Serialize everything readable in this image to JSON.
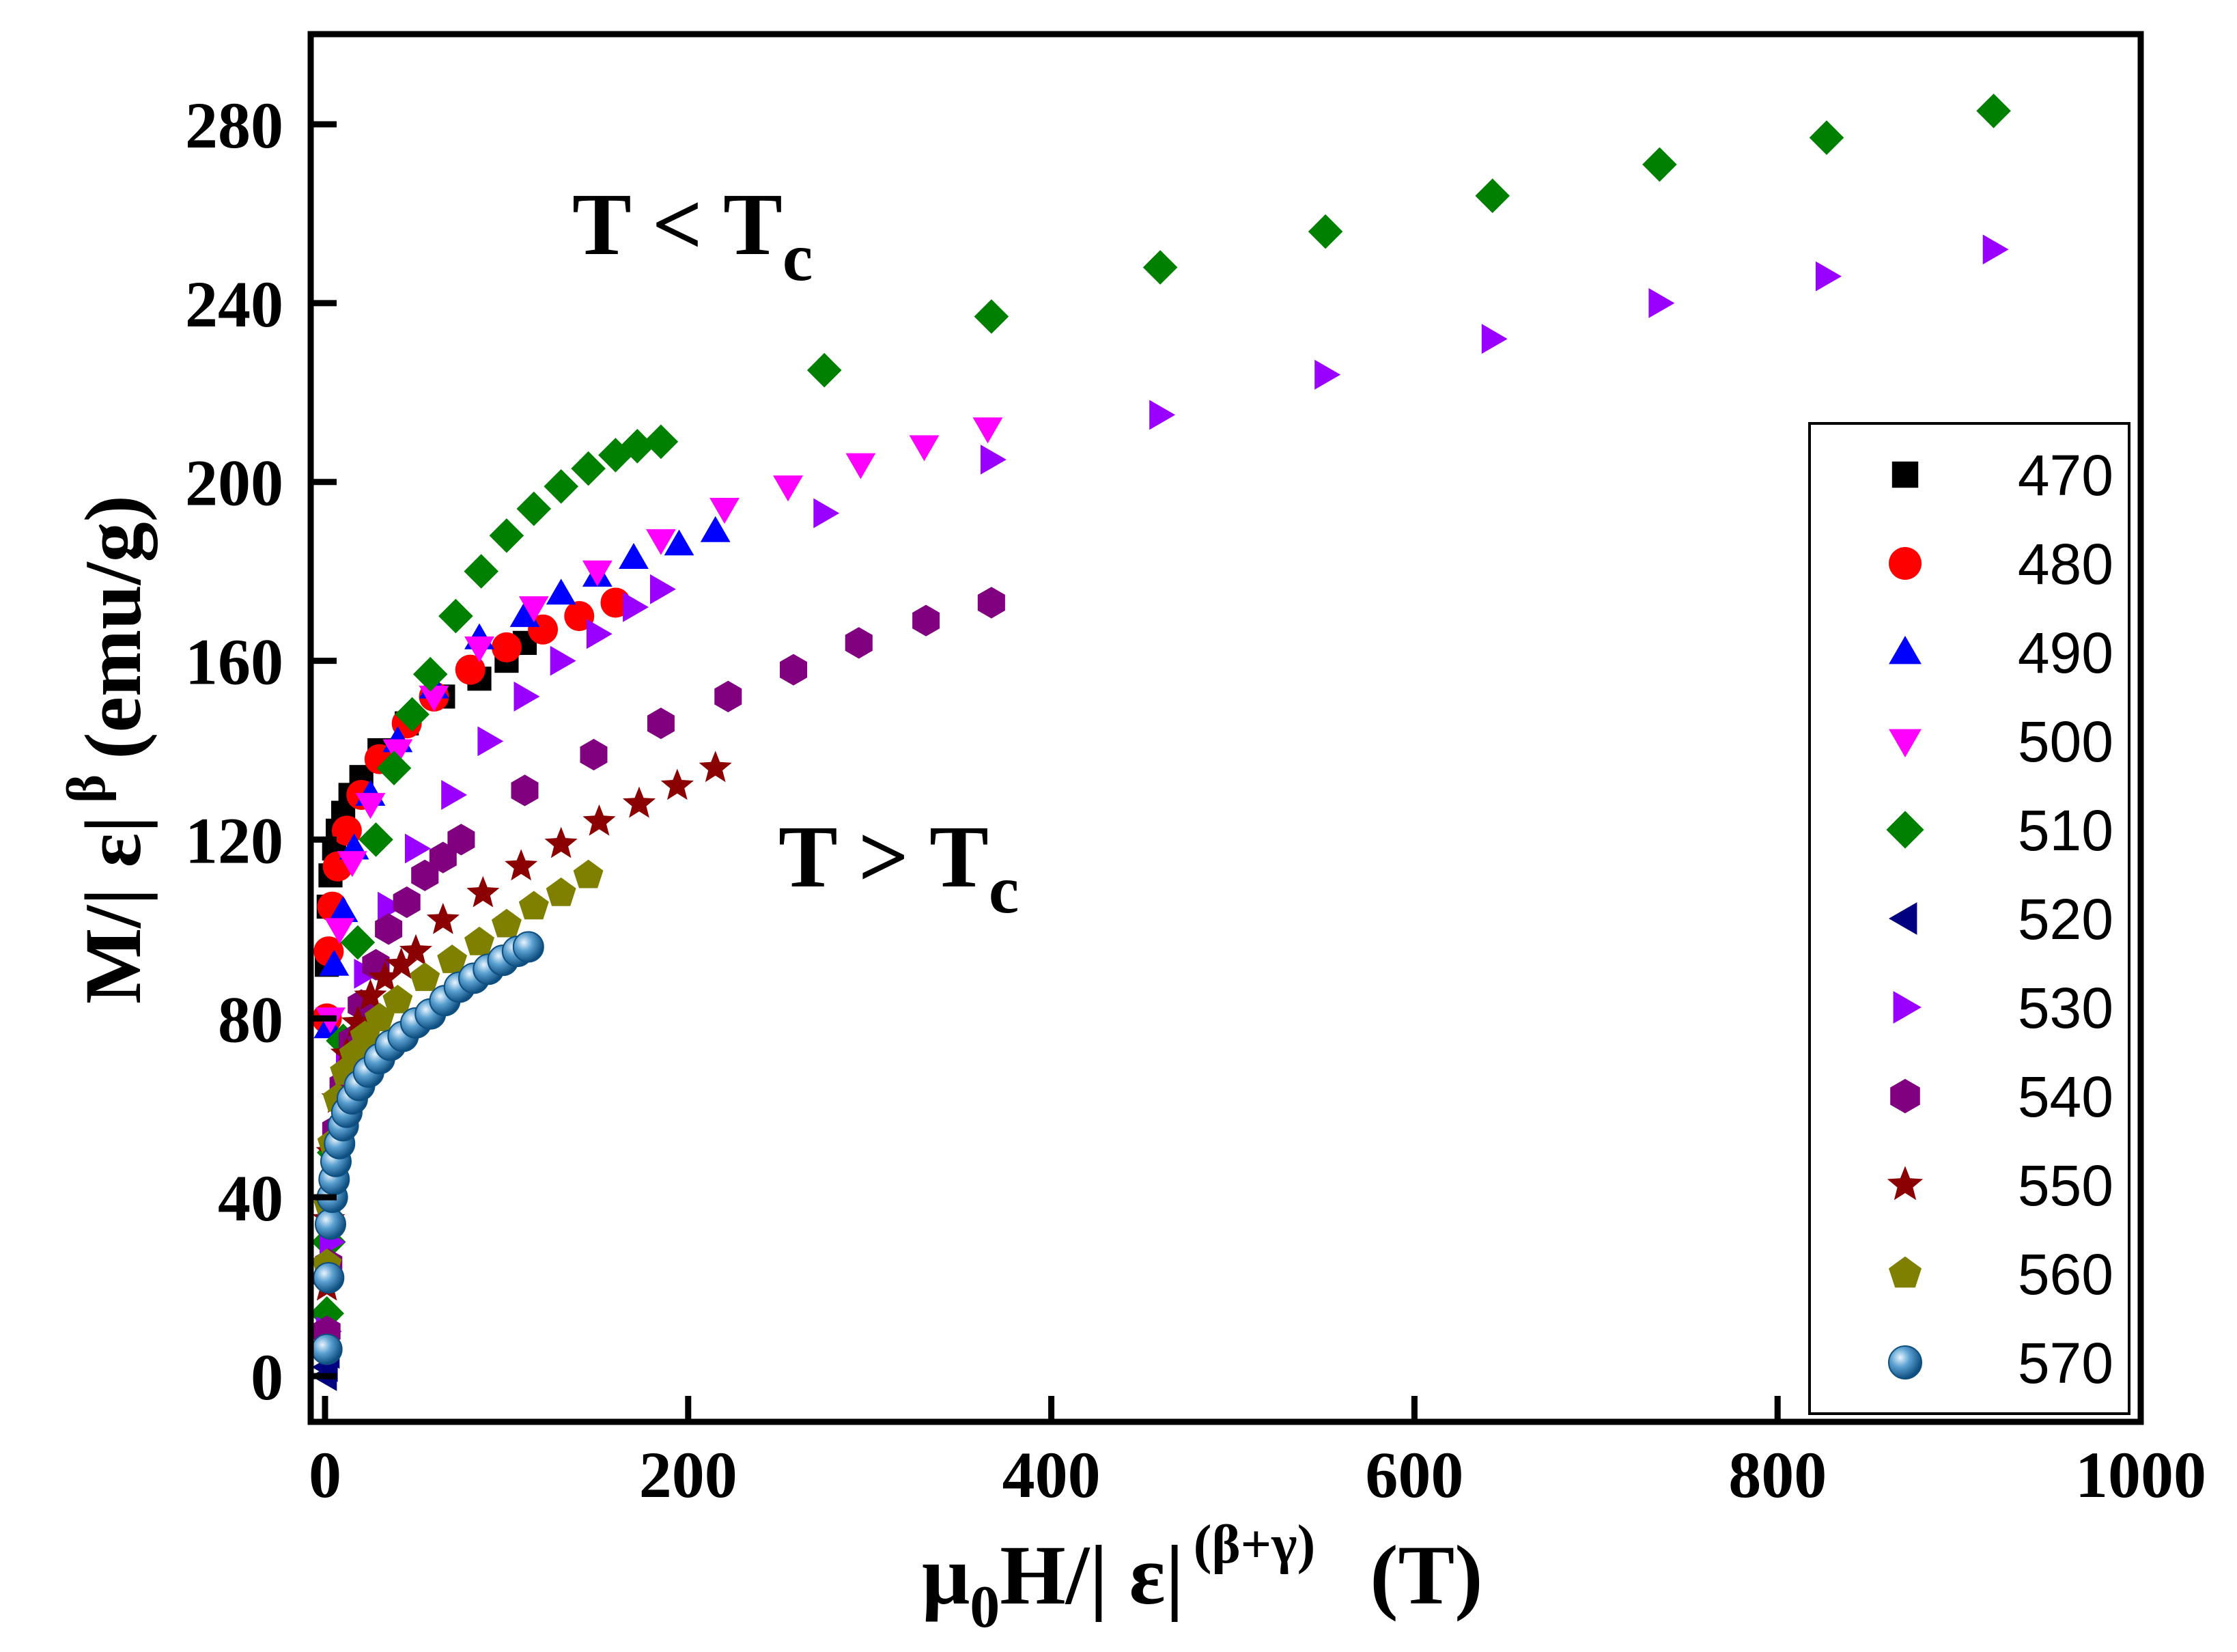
{
  "chart_data": {
    "type": "scatter",
    "xlabel": {
      "main": "μ",
      "sub": "0",
      "mid": "H/| ε|",
      "sup": "(β+γ)",
      "unit": "(T)"
    },
    "ylabel": {
      "main": "M/| ε|",
      "sup": "β",
      "unit": "(emu/g)"
    },
    "xlim": [
      0,
      1000
    ],
    "ylim": [
      -10,
      300
    ],
    "xticks": [
      0,
      200,
      400,
      600,
      800,
      1000
    ],
    "yticks": [
      0,
      40,
      80,
      120,
      160,
      200,
      240,
      280
    ],
    "annotations": [
      {
        "id": "below-tc",
        "base": "T < T",
        "sub": "c"
      },
      {
        "id": "above-tc",
        "base": "T > T",
        "sub": "c"
      }
    ],
    "legend_position": "right",
    "series": [
      {
        "name": "470",
        "marker": "square",
        "color": "#000000",
        "x": [
          1,
          2,
          3,
          5,
          7,
          10,
          14,
          20,
          30,
          45,
          65,
          85,
          100,
          110
        ],
        "y": [
          92,
          105,
          112,
          118,
          122,
          126,
          130,
          134,
          140,
          146,
          152,
          156,
          160,
          164
        ]
      },
      {
        "name": "480",
        "marker": "circle",
        "color": "#ff0000",
        "x": [
          1,
          2,
          4,
          7,
          12,
          20,
          30,
          45,
          60,
          80,
          100,
          120,
          140,
          160
        ],
        "y": [
          80,
          95,
          105,
          114,
          122,
          130,
          138,
          146,
          152,
          158,
          163,
          167,
          170,
          173
        ]
      },
      {
        "name": "490",
        "marker": "triangle-up",
        "color": "#0000ff",
        "x": [
          2,
          5,
          10,
          16,
          25,
          40,
          60,
          85,
          110,
          130,
          150,
          170,
          195,
          215
        ],
        "y": [
          78,
          92,
          104,
          118,
          130,
          142,
          154,
          165,
          170,
          175,
          179,
          183,
          186,
          189
        ]
      },
      {
        "name": "500",
        "marker": "triangle-down",
        "color": "#ff00ff",
        "x": [
          3,
          8,
          15,
          25,
          40,
          60,
          85,
          115,
          150,
          185,
          220,
          255,
          295,
          330,
          365
        ],
        "y": [
          80,
          100,
          115,
          128,
          140,
          152,
          163,
          172,
          180,
          187,
          194,
          199,
          204,
          208,
          212
        ]
      },
      {
        "name": "510",
        "marker": "diamond",
        "color": "#008000",
        "x": [
          1,
          2,
          5,
          10,
          18,
          28,
          38,
          48,
          58,
          72,
          86,
          100,
          115,
          130,
          145,
          160,
          172,
          185,
          275,
          367,
          460,
          551,
          643,
          735,
          827,
          919
        ],
        "y": [
          14,
          30,
          50,
          75,
          97,
          120,
          136,
          148,
          157,
          170,
          180,
          188,
          194,
          199,
          203,
          206,
          208,
          209,
          225,
          237,
          248,
          256,
          264,
          271,
          277,
          283
        ]
      },
      {
        "name": "520",
        "marker": "triangle-left",
        "color": "#000080",
        "x": [
          0.5,
          1,
          2
        ],
        "y": [
          0,
          2,
          5
        ]
      },
      {
        "name": "530",
        "marker": "triangle-right",
        "color": "#9900ff",
        "x": [
          1,
          3,
          6,
          12,
          22,
          35,
          50,
          70,
          90,
          110,
          130,
          150,
          170,
          185,
          275,
          367,
          460,
          551,
          643,
          735,
          827,
          919
        ],
        "y": [
          10,
          30,
          50,
          70,
          90,
          105,
          118,
          130,
          142,
          152,
          160,
          166,
          172,
          176,
          193,
          205,
          215,
          224,
          232,
          240,
          246,
          252
        ]
      },
      {
        "name": "540",
        "marker": "hexagon",
        "color": "#800080",
        "x": [
          1,
          2,
          4,
          6,
          10,
          15,
          20,
          28,
          35,
          45,
          55,
          65,
          75,
          110,
          148,
          185,
          222,
          258,
          294,
          331,
          367
        ],
        "y": [
          10,
          25,
          40,
          55,
          65,
          75,
          83,
          92,
          100,
          106,
          112,
          116,
          120,
          131,
          139,
          146,
          152,
          158,
          164,
          169,
          173
        ]
      },
      {
        "name": "550",
        "marker": "star",
        "color": "#8b0000",
        "x": [
          1,
          2,
          4,
          7,
          12,
          18,
          25,
          33,
          42,
          50,
          65,
          87,
          108,
          130,
          151,
          173,
          194,
          215
        ],
        "y": [
          20,
          35,
          50,
          62,
          72,
          79,
          85,
          89,
          92,
          95,
          102,
          108,
          114,
          119,
          124,
          128,
          132,
          136
        ]
      },
      {
        "name": "560",
        "marker": "pentagon",
        "color": "#808000",
        "x": [
          1,
          2,
          4,
          7,
          11,
          16,
          22,
          30,
          40,
          55,
          70,
          85,
          100,
          115,
          130,
          145
        ],
        "y": [
          25,
          38,
          52,
          62,
          68,
          72,
          76,
          80,
          84,
          89,
          93,
          97,
          101,
          105,
          108,
          112
        ]
      },
      {
        "name": "570",
        "marker": "ball",
        "color": "#1f6ea8",
        "x": [
          1,
          2,
          3,
          4,
          5,
          6,
          8,
          10,
          12,
          15,
          19,
          24,
          30,
          36,
          43,
          50,
          58,
          66,
          74,
          82,
          90,
          98,
          106,
          112
        ],
        "y": [
          6,
          22,
          34,
          40,
          44,
          48,
          52,
          56,
          59,
          62,
          65,
          68,
          71,
          74,
          76,
          79,
          81,
          84,
          87,
          89,
          91,
          93,
          95,
          96
        ]
      }
    ]
  }
}
